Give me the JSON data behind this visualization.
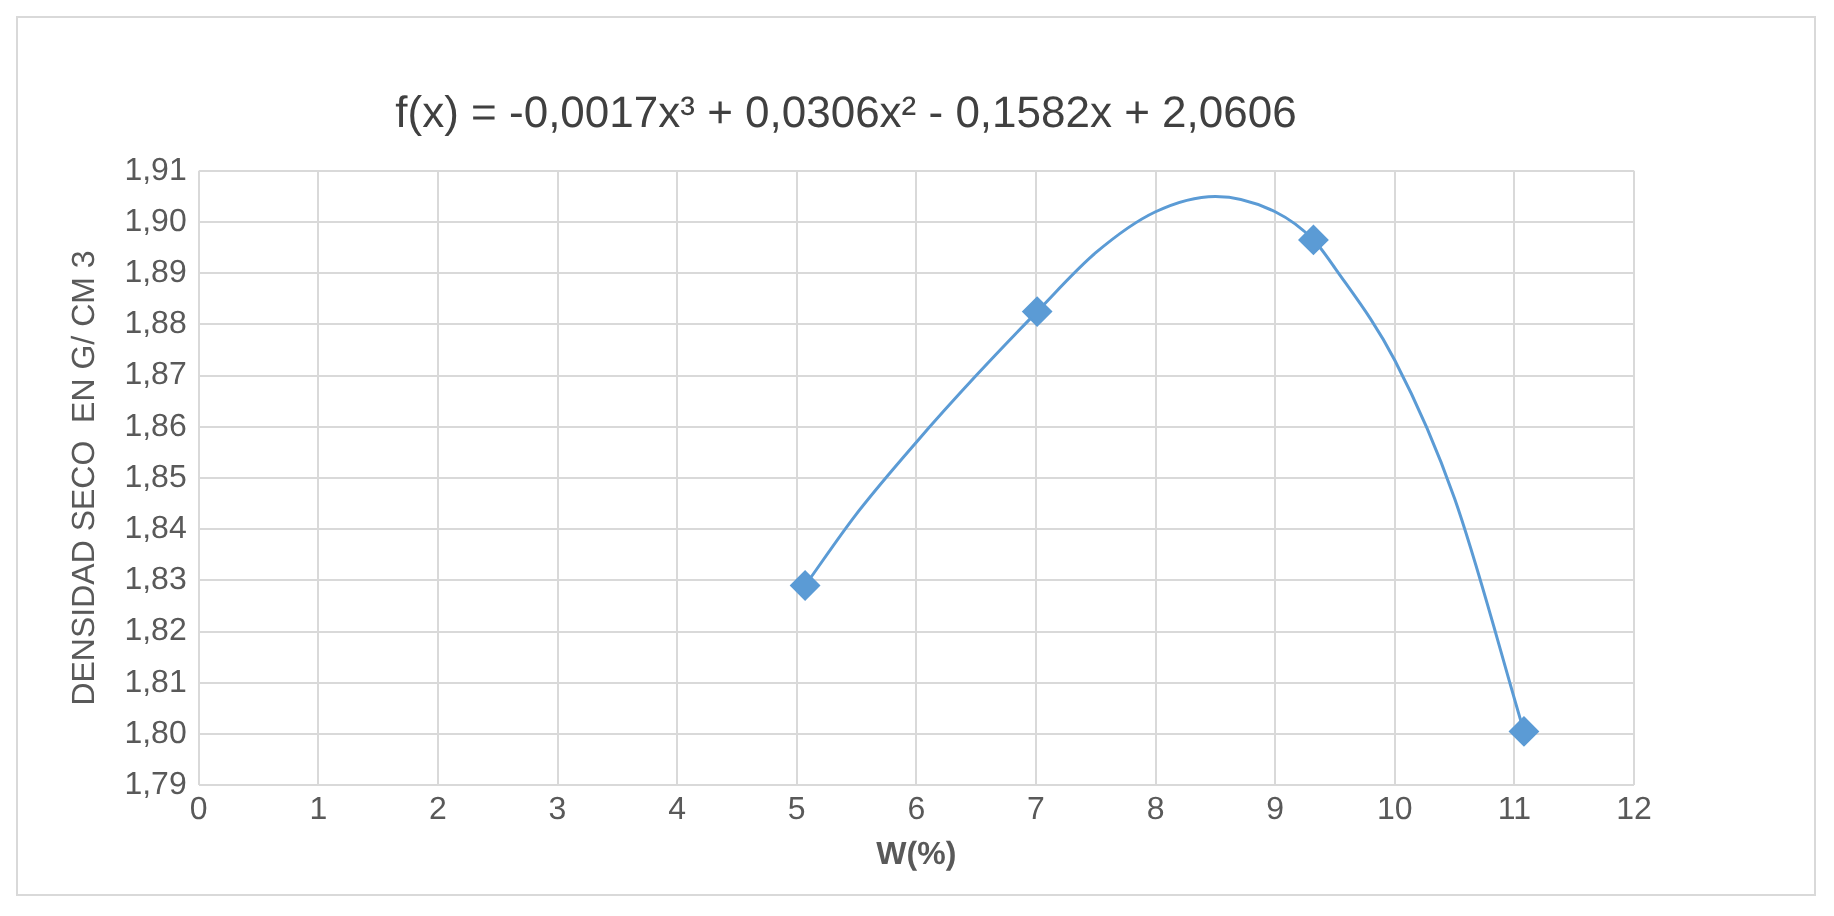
{
  "chart_data": {
    "type": "scatter",
    "title": "f(x) = -0,0017x³ + 0,0306x² - 0,1582x + 2,0606",
    "xlabel": "W(%)",
    "ylabel": "DENSIDAD SECO  EN G/ CM 3",
    "series": [
      {
        "type": "scatter",
        "color": "#5b9bd5",
        "marker": "diamond",
        "x": [
          5.07,
          7.01,
          9.32,
          11.08
        ],
        "values": [
          1.829,
          1.8825,
          1.8965,
          1.8005
        ]
      },
      {
        "type": "line",
        "color": "#5b9bd5",
        "marker": "none",
        "x": [
          5.07,
          5.5,
          6,
          6.5,
          7.01,
          7.5,
          8,
          8.5,
          9,
          9.32,
          9.5,
          10,
          10.5,
          11.08
        ],
        "values": [
          1.829,
          1.843,
          1.857,
          1.87,
          1.8825,
          1.894,
          1.902,
          1.905,
          1.902,
          1.8965,
          1.891,
          1.873,
          1.846,
          1.8005
        ]
      }
    ],
    "xlim": [
      0,
      12
    ],
    "xticks": [
      0,
      1,
      2,
      3,
      4,
      5,
      6,
      7,
      8,
      9,
      10,
      11,
      12
    ],
    "ylim": [
      1.79,
      1.91
    ],
    "yticks": [
      {
        "value": 1.79,
        "label": "1,79"
      },
      {
        "value": 1.8,
        "label": "1,80"
      },
      {
        "value": 1.81,
        "label": "1,81"
      },
      {
        "value": 1.82,
        "label": "1,82"
      },
      {
        "value": 1.83,
        "label": "1,83"
      },
      {
        "value": 1.84,
        "label": "1,84"
      },
      {
        "value": 1.85,
        "label": "1,85"
      },
      {
        "value": 1.86,
        "label": "1,86"
      },
      {
        "value": 1.87,
        "label": "1,87"
      },
      {
        "value": 1.88,
        "label": "1,88"
      },
      {
        "value": 1.89,
        "label": "1,89"
      },
      {
        "value": 1.9,
        "label": "1,90"
      },
      {
        "value": 1.91,
        "label": "1,91"
      }
    ],
    "grid": true,
    "legend": false
  }
}
